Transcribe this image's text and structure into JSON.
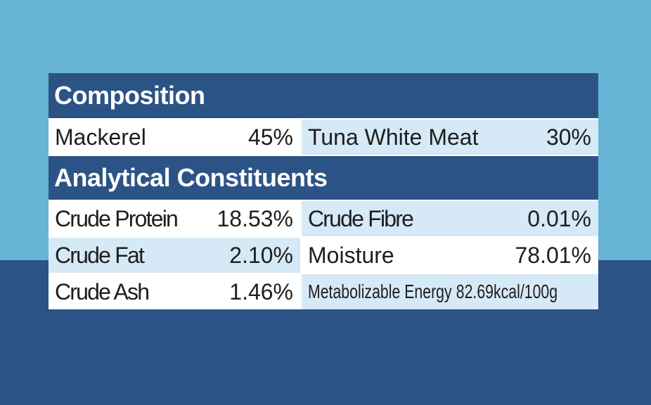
{
  "sections": [
    {
      "title": "Composition",
      "rows": [
        [
          {
            "label": "Mackerel",
            "value": "45%"
          },
          {
            "label": "Tuna White Meat",
            "value": "30%"
          }
        ]
      ]
    },
    {
      "title": "Analytical Constituents",
      "rows": [
        [
          {
            "label": "Crude Protein",
            "value": "18.53%"
          },
          {
            "label": "Crude Fibre",
            "value": "0.01%"
          }
        ],
        [
          {
            "label": "Crude Fat",
            "value": "2.10%"
          },
          {
            "label": "Moisture",
            "value": "78.01%"
          }
        ],
        [
          {
            "label": "Crude Ash",
            "value": "1.46%"
          },
          {
            "label": "Metabolizable Energy",
            "value": "82.69kcal/100g"
          }
        ]
      ]
    }
  ]
}
